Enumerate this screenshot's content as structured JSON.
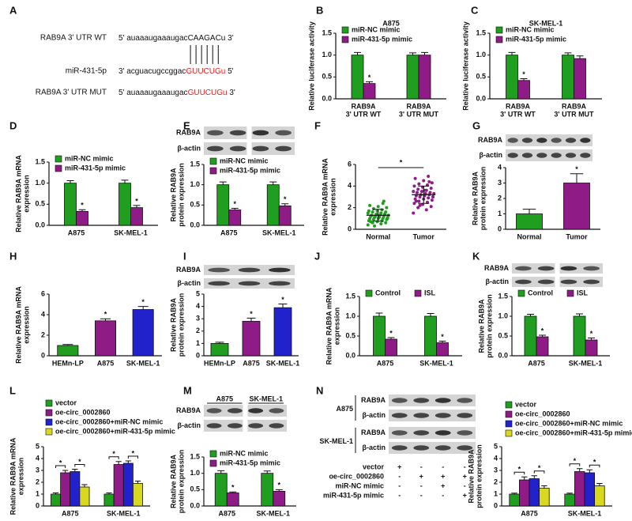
{
  "sequence_panel": {
    "panel": "A",
    "rows": [
      {
        "label": "RAB9A 3' UTR WT",
        "parts": [
          {
            "text": "5' auaaaugaaaugac"
          },
          {
            "text": "CAAGAC"
          },
          {
            "text": "u 3'"
          }
        ]
      },
      {
        "label": "miR-431-5p",
        "parts": [
          {
            "text": "3' acguacugccggac"
          },
          {
            "text": "GUUCUGu",
            "color": "#e8201c"
          },
          {
            "text": " 5'"
          }
        ]
      },
      {
        "label": "RAB9A 3' UTR MUT",
        "parts": [
          {
            "text": "5' auaaaugaaaugac"
          },
          {
            "text": "GUUCUGu",
            "color": "#e8201c"
          },
          {
            "text": " 3'"
          }
        ]
      }
    ]
  },
  "chart_data": [
    {
      "panel": "B",
      "type": "bar",
      "title": "A875",
      "ylabel": [
        "Relative luciferase activity"
      ],
      "categories": [
        [
          "RAB9A",
          "3' UTR WT"
        ],
        [
          "RAB9A",
          "3' UTR MUT"
        ]
      ],
      "series": [
        {
          "name": "miR-NC mimic",
          "color": "#1f9e1f",
          "values": [
            1.0,
            1.0
          ],
          "errors": [
            0.06,
            0.05
          ]
        },
        {
          "name": "miR-431-5p mimic",
          "color": "#8e1b86",
          "values": [
            0.35,
            1.0
          ],
          "errors": [
            0.04,
            0.06
          ],
          "significance": [
            "*",
            null
          ]
        }
      ],
      "ylim": [
        0,
        1.5
      ],
      "yticks": [
        {
          "value": 0,
          "label": "0.0"
        },
        0.5,
        {
          "value": 1,
          "label": "1.0"
        },
        1.5
      ],
      "legend": "upper left"
    },
    {
      "panel": "C",
      "type": "bar",
      "title": "SK-MEL-1",
      "ylabel": [
        "Relative luciferase activity"
      ],
      "categories": [
        [
          "RAB9A",
          "3' UTR WT"
        ],
        [
          "RAB9A",
          "3' UTR MUT"
        ]
      ],
      "series": [
        {
          "name": "miR-NC mimic",
          "color": "#1f9e1f",
          "values": [
            1.0,
            1.0
          ],
          "errors": [
            0.06,
            0.05
          ]
        },
        {
          "name": "miR-431-5p mimic",
          "color": "#8e1b86",
          "values": [
            0.42,
            0.92
          ],
          "errors": [
            0.04,
            0.06
          ],
          "significance": [
            "*",
            null
          ]
        }
      ],
      "ylim": [
        0,
        1.5
      ],
      "yticks": [
        {
          "value": 0,
          "label": "0.0"
        },
        0.5,
        {
          "value": 1,
          "label": "1.0"
        },
        1.5
      ],
      "legend": "upper left"
    },
    {
      "panel": "D",
      "type": "bar",
      "ylabel": [
        "Relative RAB9A mRNA",
        "expression"
      ],
      "categories": [
        [
          "A875"
        ],
        [
          "SK-MEL-1"
        ]
      ],
      "series": [
        {
          "name": "miR-NC mimic",
          "color": "#1f9e1f",
          "values": [
            1.0,
            1.0
          ],
          "errors": [
            0.06,
            0.07
          ]
        },
        {
          "name": "miR-431-5p mimic",
          "color": "#8e1b86",
          "values": [
            0.33,
            0.42
          ],
          "errors": [
            0.04,
            0.05
          ],
          "significance": [
            "*",
            "*"
          ]
        }
      ],
      "ylim": [
        0,
        1.5
      ],
      "yticks": [
        {
          "value": 0,
          "label": "0.0"
        },
        0.5,
        {
          "value": 1,
          "label": "1.0"
        },
        1.5
      ],
      "legend": "upper left"
    },
    {
      "panel": "E",
      "type": "bar",
      "blot": {
        "labels": [
          "RAB9A",
          "β-actin"
        ]
      },
      "ylabel": [
        "Relative RAB9A",
        "protein expression"
      ],
      "categories": [
        [
          "A875"
        ],
        [
          "SK-MEL-1"
        ]
      ],
      "series": [
        {
          "name": "miR-NC mimic",
          "color": "#1f9e1f",
          "values": [
            1.0,
            1.0
          ],
          "errors": [
            0.07,
            0.07
          ]
        },
        {
          "name": "miR-431-5p mimic",
          "color": "#8e1b86",
          "values": [
            0.38,
            0.48
          ],
          "errors": [
            0.04,
            0.05
          ],
          "significance": [
            "*",
            "*"
          ]
        }
      ],
      "ylim": [
        0,
        1.5
      ],
      "yticks": [
        {
          "value": 0,
          "label": "0.0"
        },
        0.5,
        {
          "value": 1,
          "label": "1.0"
        },
        1.5
      ],
      "legend": "upper left"
    },
    {
      "panel": "F",
      "type": "dot",
      "ylabel": [
        "Relative RAB9A mRNA",
        "expression"
      ],
      "categories": [
        [
          "Normal"
        ],
        [
          "Tumor"
        ]
      ],
      "significance": "*",
      "groups": [
        {
          "color": "#1f9e1f",
          "mean": 1.3,
          "sd": 0.55,
          "values": [
            0.4,
            0.5,
            0.6,
            0.6,
            0.7,
            0.8,
            0.8,
            0.9,
            0.9,
            1.0,
            1.0,
            1.0,
            1.1,
            1.1,
            1.1,
            1.2,
            1.2,
            1.2,
            1.3,
            1.3,
            1.3,
            1.4,
            1.4,
            1.5,
            1.5,
            1.6,
            1.6,
            1.7,
            1.7,
            1.8,
            1.9,
            2.0,
            2.1,
            2.2,
            2.4,
            0.3,
            1.0,
            1.2,
            0.7,
            2.6
          ]
        },
        {
          "color": "#8e1b86",
          "mean": 3.2,
          "sd": 0.8,
          "values": [
            1.5,
            1.8,
            2.0,
            2.1,
            2.3,
            2.4,
            2.5,
            2.6,
            2.7,
            2.8,
            2.8,
            2.9,
            3.0,
            3.0,
            3.1,
            3.1,
            3.2,
            3.2,
            3.3,
            3.3,
            3.4,
            3.4,
            3.5,
            3.5,
            3.6,
            3.7,
            3.8,
            3.9,
            4.0,
            4.1,
            4.2,
            4.3,
            4.5,
            4.7,
            4.9,
            2.2,
            3.0,
            3.6,
            2.6,
            4.4
          ]
        }
      ],
      "ylim": [
        0,
        6
      ],
      "yticks": [
        0,
        2,
        4,
        6
      ]
    },
    {
      "panel": "G",
      "type": "bar",
      "blot": {
        "labels": [
          "RAB9A",
          "β-actin"
        ]
      },
      "ylabel": [
        "Relative RAB9A",
        "protein expression"
      ],
      "categories": [
        [
          "Normal"
        ],
        [
          "Tumor"
        ]
      ],
      "values": [
        1.0,
        3.0
      ],
      "errors": [
        0.3,
        0.6
      ],
      "colors": [
        "#1f9e1f",
        "#8e1b86"
      ],
      "significance": [
        null,
        "*"
      ],
      "ylim": [
        0,
        4
      ],
      "yticks": [
        0,
        1,
        2,
        3,
        4
      ]
    },
    {
      "panel": "H",
      "type": "bar",
      "ylabel": [
        "Relative RAB9A mRNA",
        "expression"
      ],
      "categories": [
        [
          "HEMn-LP"
        ],
        [
          "A875"
        ],
        [
          "SK-MEL-1"
        ]
      ],
      "values": [
        1.0,
        3.4,
        4.5
      ],
      "errors": [
        0.1,
        0.2,
        0.3
      ],
      "colors": [
        "#1f9e1f",
        "#8e1b86",
        "#2222cc"
      ],
      "significance": [
        null,
        "*",
        "*"
      ],
      "ylim": [
        0,
        6
      ],
      "yticks": [
        0,
        2,
        4,
        6
      ]
    },
    {
      "panel": "I",
      "type": "bar",
      "blot": {
        "labels": [
          "RAB9A",
          "β-actin"
        ]
      },
      "ylabel": [
        "Relative RAB9A",
        "protein expression"
      ],
      "categories": [
        [
          "HEMn-LP"
        ],
        [
          "A875"
        ],
        [
          "SK-MEL-1"
        ]
      ],
      "values": [
        1.0,
        2.8,
        3.9
      ],
      "errors": [
        0.1,
        0.25,
        0.3
      ],
      "colors": [
        "#1f9e1f",
        "#8e1b86",
        "#2222cc"
      ],
      "significance": [
        null,
        "*",
        "*"
      ],
      "ylim": [
        0,
        5
      ],
      "yticks": [
        0,
        1,
        2,
        3,
        4,
        5
      ]
    },
    {
      "panel": "J",
      "type": "bar",
      "ylabel": [
        "Relative RAB9A mRNA",
        "expression"
      ],
      "categories": [
        [
          "A875"
        ],
        [
          "SK-MEL-1"
        ]
      ],
      "series": [
        {
          "name": "Control",
          "color": "#1f9e1f",
          "values": [
            1.0,
            1.0
          ],
          "errors": [
            0.08,
            0.07
          ]
        },
        {
          "name": "ISL",
          "color": "#8e1b86",
          "values": [
            0.42,
            0.33
          ],
          "errors": [
            0.04,
            0.04
          ],
          "significance": [
            "*",
            "*"
          ]
        }
      ],
      "ylim": [
        0,
        1.5
      ],
      "yticks": [
        {
          "value": 0,
          "label": "0.0"
        },
        0.5,
        {
          "value": 1,
          "label": "1.0"
        },
        1.5
      ],
      "legend": "top"
    },
    {
      "panel": "K",
      "type": "bar",
      "blot": {
        "labels": [
          "RAB9A",
          "β-actin"
        ]
      },
      "ylabel": [
        "Relative RAB9A",
        "protein expression"
      ],
      "categories": [
        [
          "A875"
        ],
        [
          "SK-MEL-1"
        ]
      ],
      "series": [
        {
          "name": "Control",
          "color": "#1f9e1f",
          "values": [
            1.0,
            1.0
          ],
          "errors": [
            0.05,
            0.06
          ]
        },
        {
          "name": "ISL",
          "color": "#8e1b86",
          "values": [
            0.48,
            0.4
          ],
          "errors": [
            0.04,
            0.05
          ],
          "significance": [
            "*",
            "*"
          ]
        }
      ],
      "ylim": [
        0,
        1.5
      ],
      "yticks": [
        {
          "value": 0,
          "label": "0.0"
        },
        0.5,
        {
          "value": 1,
          "label": "1.0"
        },
        1.5
      ],
      "legend": "top"
    },
    {
      "panel": "L",
      "type": "bar",
      "ylabel": [
        "Relative RAB9A mRNA",
        "expression"
      ],
      "categories": [
        [
          "A875"
        ],
        [
          "SK-MEL-1"
        ]
      ],
      "brackets": true,
      "series": [
        {
          "name": "vector",
          "color": "#1f9e1f",
          "values": [
            1.0,
            1.0
          ],
          "errors": [
            0.1,
            0.1
          ]
        },
        {
          "name": "oe-circ_0002860",
          "color": "#8e1b86",
          "values": [
            2.8,
            3.5
          ],
          "errors": [
            0.2,
            0.25
          ],
          "significance": [
            "*",
            "*"
          ]
        },
        {
          "name": "oe-circ_0002860+miR-NC mimic",
          "color": "#2222cc",
          "values": [
            2.9,
            3.6
          ],
          "errors": [
            0.2,
            0.2
          ]
        },
        {
          "name": "oe-circ_0002860+miR-431-5p mimic",
          "color": "#d8d820",
          "values": [
            1.6,
            1.9
          ],
          "errors": [
            0.2,
            0.2
          ],
          "significance": [
            "*",
            "*"
          ]
        }
      ],
      "ylim": [
        0,
        5
      ],
      "yticks": [
        0,
        1,
        2,
        3,
        4,
        5
      ],
      "legend": "above"
    },
    {
      "panel": "M",
      "type": "bar",
      "blot": {
        "columns": [
          "A875",
          "SK-MEL-1"
        ],
        "labels": [
          "RAB9A",
          "β-actin"
        ]
      },
      "ylabel": [
        "Relative RAB9A",
        "protein expression"
      ],
      "categories": [
        [
          "A875"
        ],
        [
          "SK-MEL-1"
        ]
      ],
      "series": [
        {
          "name": "miR-NC mimic",
          "color": "#1f9e1f",
          "values": [
            1.0,
            1.0
          ],
          "errors": [
            0.08,
            0.07
          ]
        },
        {
          "name": "miR-431-5p mimic",
          "color": "#8e1b86",
          "values": [
            0.4,
            0.45
          ],
          "errors": [
            0.03,
            0.05
          ],
          "significance": [
            "*",
            "*"
          ]
        }
      ],
      "ylim": [
        0,
        1.5
      ],
      "yticks": [
        {
          "value": 0,
          "label": "0.0"
        },
        0.5,
        {
          "value": 1,
          "label": "1.0"
        },
        1.5
      ],
      "legend": "upper left"
    },
    {
      "panel": "N",
      "type": "bar",
      "blot": {
        "groups": [
          {
            "name": "A875",
            "labels": [
              "RAB9A",
              "β-actin"
            ]
          },
          {
            "name": "SK-MEL-1",
            "labels": [
              "RAB9A",
              "β-actin"
            ]
          }
        ]
      },
      "treatments": [
        {
          "label": "vector",
          "cells": [
            "+",
            "-",
            "-",
            "-"
          ]
        },
        {
          "label": "oe-circ_0002860",
          "cells": [
            "-",
            "+",
            "+",
            "+"
          ]
        },
        {
          "label": "miR-NC mimic",
          "cells": [
            "-",
            "-",
            "+",
            "-"
          ]
        },
        {
          "label": "miR-431-5p mimic",
          "cells": [
            "-",
            "-",
            "-",
            "+"
          ]
        }
      ],
      "ylabel": [
        "Relative RAB9A",
        "protein expression"
      ],
      "categories": [
        [
          "A875"
        ],
        [
          "SK-MEL-1"
        ]
      ],
      "brackets": true,
      "series": [
        {
          "name": "vector",
          "color": "#1f9e1f",
          "values": [
            1.0,
            1.0
          ],
          "errors": [
            0.08,
            0.08
          ]
        },
        {
          "name": "oe-circ_0002860",
          "color": "#8e1b86",
          "values": [
            2.2,
            2.9
          ],
          "errors": [
            0.25,
            0.25
          ],
          "significance": [
            "*",
            "*"
          ]
        },
        {
          "name": "oe-circ_0002860+miR-NC mimic",
          "color": "#2222cc",
          "values": [
            2.3,
            2.8
          ],
          "errors": [
            0.25,
            0.25
          ]
        },
        {
          "name": "oe-circ_0002860+miR-431-5p mimic",
          "color": "#d8d820",
          "values": [
            1.5,
            1.7
          ],
          "errors": [
            0.2,
            0.2
          ],
          "significance": [
            "*",
            "*"
          ]
        }
      ],
      "ylim": [
        0,
        5
      ],
      "yticks": [
        0,
        1,
        2,
        3,
        4,
        5
      ],
      "legend": "above"
    }
  ]
}
